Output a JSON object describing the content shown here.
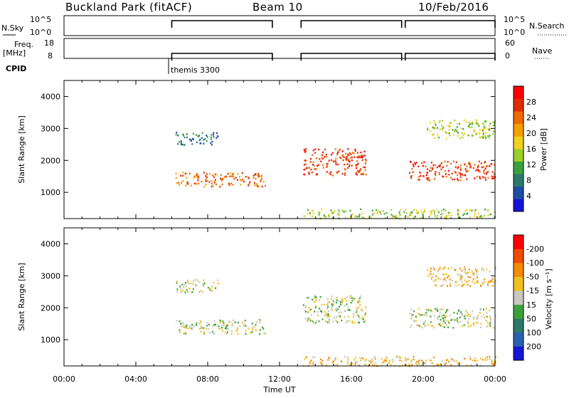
{
  "header": {
    "station": "Buckland Park (fitACF)",
    "beam": "Beam 10",
    "date": "10/Feb/2016"
  },
  "top_panels": {
    "nsky_label": "N.Sky",
    "nsky_ticks": [
      "10^5",
      "10^0"
    ],
    "nsearch_label": "N.Search",
    "freq_label_1": "Freq.",
    "freq_label_2": "[MHz]",
    "freq_ticks": [
      "18",
      "8"
    ],
    "nave_label": "Nave",
    "nave_ticks": [
      "60",
      "0"
    ],
    "cpid_label": "CPID",
    "cpid_text": "themis 3300"
  },
  "chart_data": [
    {
      "type": "heatmap",
      "name": "power",
      "title": "",
      "xlabel": "",
      "ylabel": "Slant Range [km]",
      "xlim": [
        0,
        24
      ],
      "ylim": [
        180,
        4500
      ],
      "yticks": [
        1000,
        2000,
        3000,
        4000
      ],
      "colorbar_label": "Power [dB]",
      "colorbar_ticks": [
        "4",
        "8",
        "12",
        "16",
        "20",
        "24",
        "28"
      ],
      "colors": [
        "#1414d8",
        "#1e4da6",
        "#2b7a68",
        "#3ba23b",
        "#9ccf2a",
        "#f0d020",
        "#f5a000",
        "#f06a00",
        "#e02c00",
        "#ff0000"
      ],
      "data_gaps_hours": [
        [
          0,
          6
        ],
        [
          11.7,
          13.2
        ],
        [
          18.8,
          19.0
        ]
      ],
      "scatter_regions": [
        {
          "t0": 6.2,
          "t1": 11.2,
          "r0": 1200,
          "r1": 1650,
          "level": 7
        },
        {
          "t0": 6.2,
          "t1": 8.6,
          "r0": 2500,
          "r1": 2900,
          "level": 2
        },
        {
          "t0": 13.3,
          "t1": 16.8,
          "r0": 1550,
          "r1": 2400,
          "level": 8
        },
        {
          "t0": 19.2,
          "t1": 24.0,
          "r0": 1400,
          "r1": 2000,
          "level": 8
        },
        {
          "t0": 20.2,
          "t1": 24.0,
          "r0": 2700,
          "r1": 3300,
          "level": 4
        },
        {
          "t0": 13.3,
          "t1": 24.0,
          "r0": 200,
          "r1": 500,
          "level": 4
        }
      ]
    },
    {
      "type": "heatmap",
      "name": "velocity",
      "title": "",
      "xlabel": "Time UT",
      "ylabel": "Slant Range [km]",
      "xlim": [
        0,
        24
      ],
      "ylim": [
        180,
        4500
      ],
      "xticks": [
        "00:00",
        "04:00",
        "08:00",
        "12:00",
        "16:00",
        "20:00",
        "00:00"
      ],
      "yticks": [
        1000,
        2000,
        3000,
        4000
      ],
      "colorbar_label": "Velocity [m s⁻¹]",
      "colorbar_ticks": [
        "200",
        "100",
        "50",
        "15",
        "-15",
        "-50",
        "-100",
        "-200"
      ],
      "colors": [
        "#1414d8",
        "#2a60b0",
        "#2b7a68",
        "#3ba23b",
        "#c8c8c0",
        "#f0c020",
        "#f58a00",
        "#f04a00",
        "#ff0000"
      ],
      "scatter_regions": [
        {
          "t0": 6.2,
          "t1": 11.2,
          "r0": 1200,
          "r1": 1650,
          "level": 4
        },
        {
          "t0": 6.2,
          "t1": 8.6,
          "r0": 2500,
          "r1": 2900,
          "level": 4
        },
        {
          "t0": 13.3,
          "t1": 16.8,
          "r0": 1550,
          "r1": 2400,
          "level": 4
        },
        {
          "t0": 19.2,
          "t1": 24.0,
          "r0": 1400,
          "r1": 2000,
          "level": 4
        },
        {
          "t0": 20.2,
          "t1": 24.0,
          "r0": 2700,
          "r1": 3300,
          "level": 5
        },
        {
          "t0": 13.3,
          "t1": 24.0,
          "r0": 200,
          "r1": 500,
          "level": 5
        }
      ]
    }
  ]
}
